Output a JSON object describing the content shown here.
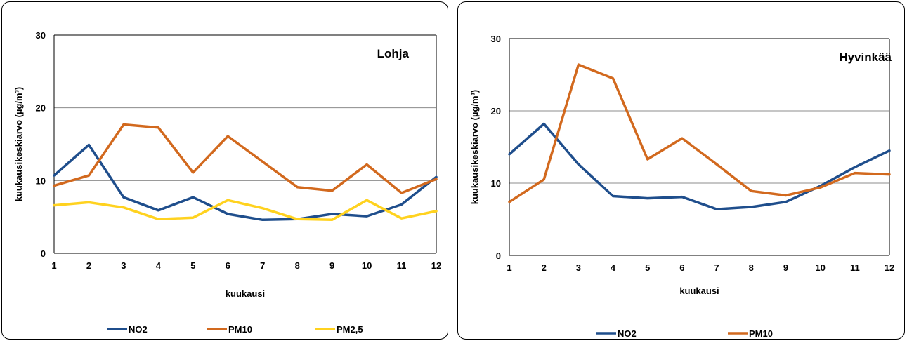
{
  "chart_data": [
    {
      "type": "line",
      "title": "Lohja",
      "xlabel": "kuukausi",
      "ylabel": "kuukausikeskiarvo (µg/m³)",
      "categories": [
        "1",
        "2",
        "3",
        "4",
        "5",
        "6",
        "7",
        "8",
        "9",
        "10",
        "11",
        "12"
      ],
      "ylim": [
        0,
        30
      ],
      "yticks": [
        "0",
        "10",
        "20",
        "30"
      ],
      "grid": true,
      "legend": "bottom",
      "series": [
        {
          "name": "NO2",
          "color": "#1f4e8c",
          "values": [
            10.7,
            14.9,
            7.7,
            5.9,
            7.7,
            5.4,
            4.6,
            4.7,
            5.4,
            5.1,
            6.7,
            10.5
          ]
        },
        {
          "name": "PM10",
          "color": "#d2691e",
          "values": [
            9.3,
            10.7,
            17.7,
            17.3,
            11.1,
            16.1,
            12.6,
            9.1,
            8.6,
            12.2,
            8.3,
            10.2
          ]
        },
        {
          "name": "PM2,5",
          "color": "#ffd21f",
          "values": [
            6.6,
            7.0,
            6.3,
            4.7,
            4.9,
            7.3,
            6.2,
            4.7,
            4.6,
            7.3,
            4.8,
            5.8
          ]
        }
      ]
    },
    {
      "type": "line",
      "title": "Hyvinkää",
      "xlabel": "kuukausi",
      "ylabel": "kuukausikeskiarvo (µg/m³)",
      "categories": [
        "1",
        "2",
        "3",
        "4",
        "5",
        "6",
        "7",
        "8",
        "9",
        "10",
        "11",
        "12"
      ],
      "ylim": [
        0,
        30
      ],
      "yticks": [
        "0",
        "10",
        "20",
        "30"
      ],
      "grid": true,
      "legend": "bottom",
      "series": [
        {
          "name": "NO2",
          "color": "#1f4e8c",
          "values": [
            14.0,
            18.2,
            12.6,
            8.2,
            7.9,
            8.1,
            6.4,
            6.7,
            7.4,
            9.6,
            12.2,
            14.5
          ]
        },
        {
          "name": "PM10",
          "color": "#d2691e",
          "values": [
            7.4,
            10.5,
            26.4,
            24.5,
            13.3,
            16.2,
            12.6,
            8.9,
            8.3,
            9.4,
            11.4,
            11.2
          ]
        }
      ]
    }
  ]
}
